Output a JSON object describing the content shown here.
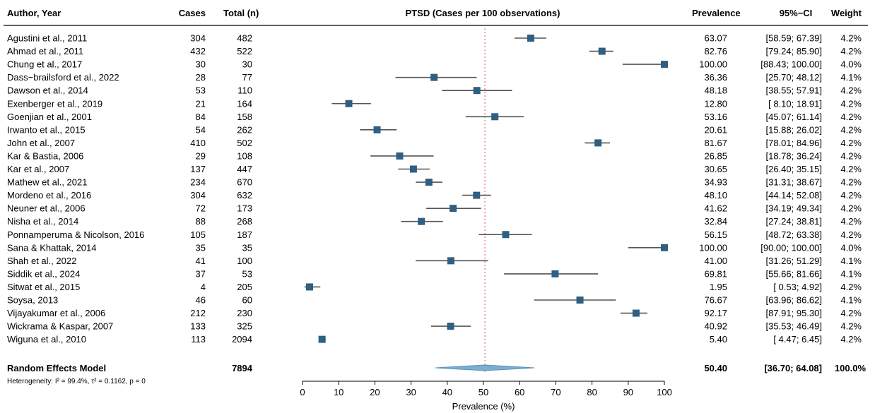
{
  "headers": {
    "author": "Author, Year",
    "cases": "Cases",
    "total": "Total (n)",
    "plot_title": "PTSD (Cases per 100 observations)",
    "prevalence": "Prevalence",
    "ci": "95%−CI",
    "weight": "Weight"
  },
  "rows": [
    {
      "author": "Agustini et al., 2011",
      "cases": "304",
      "total": "482",
      "prev": "63.07",
      "ci": "[58.59; 67.39]",
      "weight": "4.2%"
    },
    {
      "author": "Ahmad et al., 2011",
      "cases": "432",
      "total": "522",
      "prev": "82.76",
      "ci": "[79.24; 85.90]",
      "weight": "4.2%"
    },
    {
      "author": "Chung et al., 2017",
      "cases": "30",
      "total": "30",
      "prev": "100.00",
      "ci": "[88.43; 100.00]",
      "weight": "4.0%"
    },
    {
      "author": "Dass−brailsford et al., 2022",
      "cases": "28",
      "total": "77",
      "prev": "36.36",
      "ci": "[25.70; 48.12]",
      "weight": "4.1%"
    },
    {
      "author": "Dawson et al., 2014",
      "cases": "53",
      "total": "110",
      "prev": "48.18",
      "ci": "[38.55; 57.91]",
      "weight": "4.2%"
    },
    {
      "author": "Exenberger et al., 2019",
      "cases": "21",
      "total": "164",
      "prev": "12.80",
      "ci": "[ 8.10; 18.91]",
      "weight": "4.2%"
    },
    {
      "author": "Goenjian et al., 2001",
      "cases": "84",
      "total": "158",
      "prev": "53.16",
      "ci": "[45.07; 61.14]",
      "weight": "4.2%"
    },
    {
      "author": "Irwanto et al., 2015",
      "cases": "54",
      "total": "262",
      "prev": "20.61",
      "ci": "[15.88; 26.02]",
      "weight": "4.2%"
    },
    {
      "author": "John et al., 2007",
      "cases": "410",
      "total": "502",
      "prev": "81.67",
      "ci": "[78.01; 84.96]",
      "weight": "4.2%"
    },
    {
      "author": "Kar & Bastia, 2006",
      "cases": "29",
      "total": "108",
      "prev": "26.85",
      "ci": "[18.78; 36.24]",
      "weight": "4.2%"
    },
    {
      "author": "Kar et al., 2007",
      "cases": "137",
      "total": "447",
      "prev": "30.65",
      "ci": "[26.40; 35.15]",
      "weight": "4.2%"
    },
    {
      "author": "Mathew et al., 2021",
      "cases": "234",
      "total": "670",
      "prev": "34.93",
      "ci": "[31.31; 38.67]",
      "weight": "4.2%"
    },
    {
      "author": "Mordeno et al., 2016",
      "cases": "304",
      "total": "632",
      "prev": "48.10",
      "ci": "[44.14; 52.08]",
      "weight": "4.2%"
    },
    {
      "author": "Neuner et al., 2006",
      "cases": "72",
      "total": "173",
      "prev": "41.62",
      "ci": "[34.19; 49.34]",
      "weight": "4.2%"
    },
    {
      "author": "Nisha et al., 2014",
      "cases": "88",
      "total": "268",
      "prev": "32.84",
      "ci": "[27.24; 38.81]",
      "weight": "4.2%"
    },
    {
      "author": "Ponnamperuma & Nicolson, 2016",
      "cases": "105",
      "total": "187",
      "prev": "56.15",
      "ci": "[48.72; 63.38]",
      "weight": "4.2%"
    },
    {
      "author": "Sana & Khattak, 2014",
      "cases": "35",
      "total": "35",
      "prev": "100.00",
      "ci": "[90.00; 100.00]",
      "weight": "4.0%"
    },
    {
      "author": "Shah et al., 2022",
      "cases": "41",
      "total": "100",
      "prev": "41.00",
      "ci": "[31.26; 51.29]",
      "weight": "4.1%"
    },
    {
      "author": "Siddik et al., 2024",
      "cases": "37",
      "total": "53",
      "prev": "69.81",
      "ci": "[55.66; 81.66]",
      "weight": "4.1%"
    },
    {
      "author": "Sitwat et al., 2015",
      "cases": "4",
      "total": "205",
      "prev": "1.95",
      "ci": "[ 0.53; 4.92]",
      "weight": "4.2%"
    },
    {
      "author": "Soysa, 2013",
      "cases": "46",
      "total": "60",
      "prev": "76.67",
      "ci": "[63.96; 86.62]",
      "weight": "4.1%"
    },
    {
      "author": "Vijayakumar et al., 2006",
      "cases": "212",
      "total": "230",
      "prev": "92.17",
      "ci": "[87.91; 95.30]",
      "weight": "4.2%"
    },
    {
      "author": "Wickrama & Kaspar, 2007",
      "cases": "133",
      "total": "325",
      "prev": "40.92",
      "ci": "[35.53; 46.49]",
      "weight": "4.2%"
    },
    {
      "author": "Wiguna et al., 2010",
      "cases": "113",
      "total": "2094",
      "prev": "5.40",
      "ci": "[ 4.47; 6.45]",
      "weight": "4.2%"
    }
  ],
  "summary": {
    "label": "Random Effects Model",
    "total": "7894",
    "prev": "50.40",
    "ci": "[36.70; 64.08]",
    "weight": "100.0%",
    "heterogeneity": "Heterogeneity: I² = 99.4%, τ² = 0.1162, p = 0"
  },
  "colors": {
    "square": "#2f5f82",
    "ci_line": "#555555",
    "diamond_fill": "#7aafd4",
    "diamond_stroke": "#5b8fb8",
    "ref_line": "#e0707a",
    "header_rule": "#000000"
  },
  "chart_data": {
    "type": "forest",
    "title": "PTSD (Cases per 100 observations)",
    "xlabel": "Prevalence (%)",
    "xlim": [
      0,
      100
    ],
    "xticks": [
      0,
      10,
      20,
      30,
      40,
      50,
      60,
      70,
      80,
      90,
      100
    ],
    "reference_line": 50.4,
    "studies": [
      {
        "estimate": 63.07,
        "lower": 58.59,
        "upper": 67.39
      },
      {
        "estimate": 82.76,
        "lower": 79.24,
        "upper": 85.9
      },
      {
        "estimate": 100.0,
        "lower": 88.43,
        "upper": 100.0
      },
      {
        "estimate": 36.36,
        "lower": 25.7,
        "upper": 48.12
      },
      {
        "estimate": 48.18,
        "lower": 38.55,
        "upper": 57.91
      },
      {
        "estimate": 12.8,
        "lower": 8.1,
        "upper": 18.91
      },
      {
        "estimate": 53.16,
        "lower": 45.07,
        "upper": 61.14
      },
      {
        "estimate": 20.61,
        "lower": 15.88,
        "upper": 26.02
      },
      {
        "estimate": 81.67,
        "lower": 78.01,
        "upper": 84.96
      },
      {
        "estimate": 26.85,
        "lower": 18.78,
        "upper": 36.24
      },
      {
        "estimate": 30.65,
        "lower": 26.4,
        "upper": 35.15
      },
      {
        "estimate": 34.93,
        "lower": 31.31,
        "upper": 38.67
      },
      {
        "estimate": 48.1,
        "lower": 44.14,
        "upper": 52.08
      },
      {
        "estimate": 41.62,
        "lower": 34.19,
        "upper": 49.34
      },
      {
        "estimate": 32.84,
        "lower": 27.24,
        "upper": 38.81
      },
      {
        "estimate": 56.15,
        "lower": 48.72,
        "upper": 63.38
      },
      {
        "estimate": 100.0,
        "lower": 90.0,
        "upper": 100.0
      },
      {
        "estimate": 41.0,
        "lower": 31.26,
        "upper": 51.29
      },
      {
        "estimate": 69.81,
        "lower": 55.66,
        "upper": 81.66
      },
      {
        "estimate": 1.95,
        "lower": 0.53,
        "upper": 4.92
      },
      {
        "estimate": 76.67,
        "lower": 63.96,
        "upper": 86.62
      },
      {
        "estimate": 92.17,
        "lower": 87.91,
        "upper": 95.3
      },
      {
        "estimate": 40.92,
        "lower": 35.53,
        "upper": 46.49
      },
      {
        "estimate": 5.4,
        "lower": 4.47,
        "upper": 6.45
      }
    ],
    "pooled": {
      "estimate": 50.4,
      "lower": 36.7,
      "upper": 64.08
    }
  }
}
